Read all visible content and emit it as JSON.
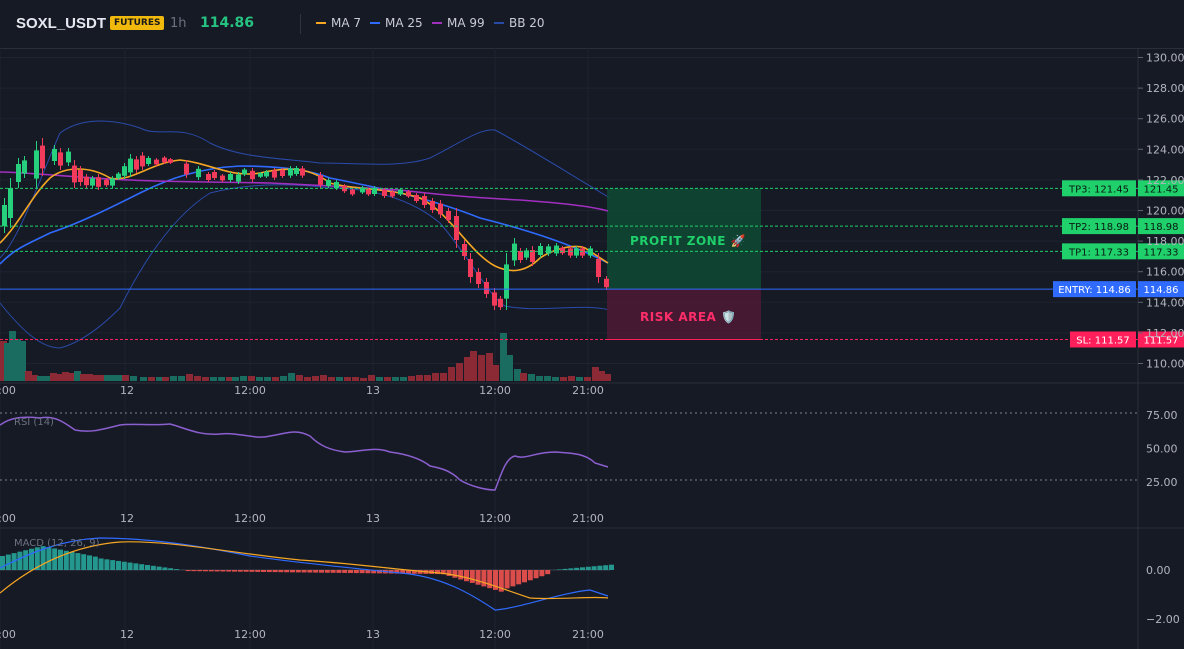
{
  "header": {
    "symbol": "SOXL_USDT",
    "badge": "FUTURES",
    "timeframe": "1h",
    "price": "114.86",
    "legend": [
      {
        "label": "MA 7",
        "color": "#f5a623"
      },
      {
        "label": "MA 25",
        "color": "#2f6bff"
      },
      {
        "label": "MA 99",
        "color": "#a12fc0"
      },
      {
        "label": "BB 20",
        "color": "#2a4aa8"
      }
    ]
  },
  "main_axis": {
    "ticks": [
      "130.00",
      "128.00",
      "126.00",
      "124.00",
      "122.00",
      "120.00",
      "118.00",
      "116.00",
      "114.00",
      "112.00",
      "110.00"
    ],
    "tick_values": [
      130,
      128,
      126,
      124,
      122,
      120,
      118,
      116,
      114,
      112,
      110
    ]
  },
  "time_axis": [
    "12:00",
    "12",
    "12:00",
    "13",
    "12:00",
    "21:00"
  ],
  "levels": {
    "tp3": {
      "tag": "TP3: 121.45",
      "value": "121.45",
      "y": 121.45
    },
    "tp2": {
      "tag": "TP2: 118.98",
      "value": "118.98",
      "y": 118.98
    },
    "tp1": {
      "tag": "TP1: 117.33",
      "value": "117.33",
      "y": 117.33
    },
    "entry": {
      "tag": "ENTRY: 114.86",
      "value": "114.86",
      "y": 114.86
    },
    "sl": {
      "tag": "SL: 111.57",
      "value": "111.57",
      "y": 111.57
    }
  },
  "zones": {
    "profit": "PROFIT ZONE 🚀",
    "risk": "RISK AREA 🛡️"
  },
  "rsi": {
    "label": "RSI (14)",
    "ticks": [
      "75.00",
      "50.00",
      "25.00"
    ]
  },
  "macd": {
    "label": "MACD (12, 26, 9)",
    "ticks": [
      "0.00",
      "−2.00"
    ]
  },
  "colors": {
    "up": "#26a69a",
    "down": "#ef5350",
    "candle_up": "#26d07c",
    "candle_down": "#f23a5a",
    "tp": "#1fcf6a",
    "entry": "#2f6bff",
    "sl": "#ff1f5a"
  }
}
